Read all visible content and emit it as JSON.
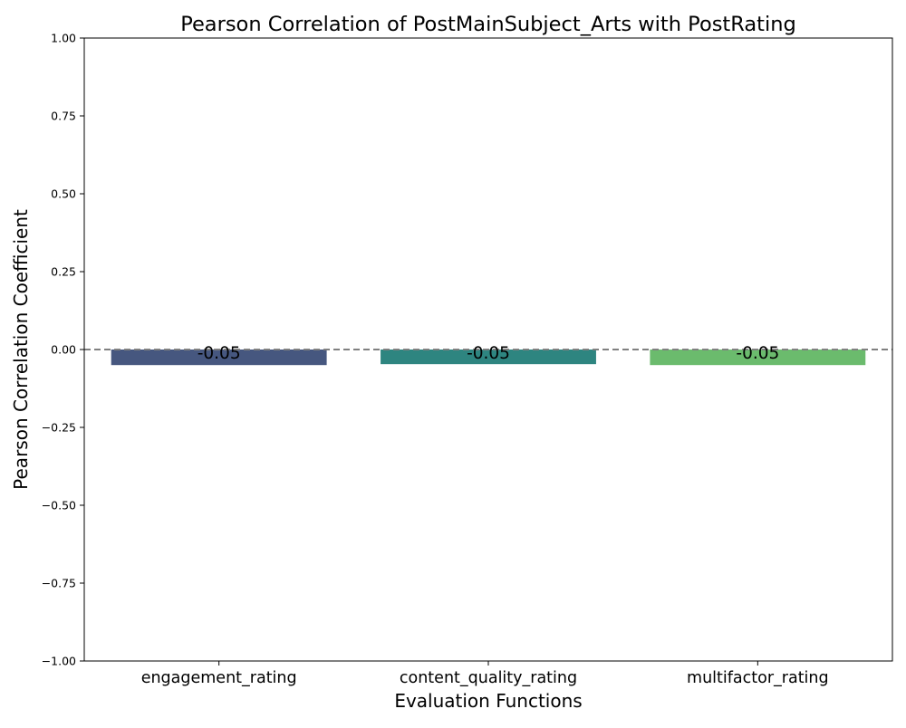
{
  "chart_data": {
    "type": "bar",
    "title": "Pearson Correlation of PostMainSubject_Arts with PostRating",
    "xlabel": "Evaluation Functions",
    "ylabel": "Pearson Correlation Coefficient",
    "categories": [
      "engagement_rating",
      "content_quality_rating",
      "multifactor_rating"
    ],
    "values": [
      -0.05,
      -0.047,
      -0.05
    ],
    "value_labels": [
      "-0.05",
      "-0.05",
      "-0.05"
    ],
    "colors": [
      "#46577f",
      "#2e8580",
      "#6bbb6d"
    ],
    "ylim": [
      -1.0,
      1.0
    ],
    "yticks": [
      -1.0,
      -0.75,
      -0.5,
      -0.25,
      0.0,
      0.25,
      0.5,
      0.75,
      1.0
    ],
    "ytick_labels": [
      "−1.00",
      "−0.75",
      "−0.50",
      "−0.25",
      "0.00",
      "0.25",
      "0.50",
      "0.75",
      "1.00"
    ],
    "reference_line": 0.0,
    "reference_line_color": "#808080",
    "grid": false
  }
}
